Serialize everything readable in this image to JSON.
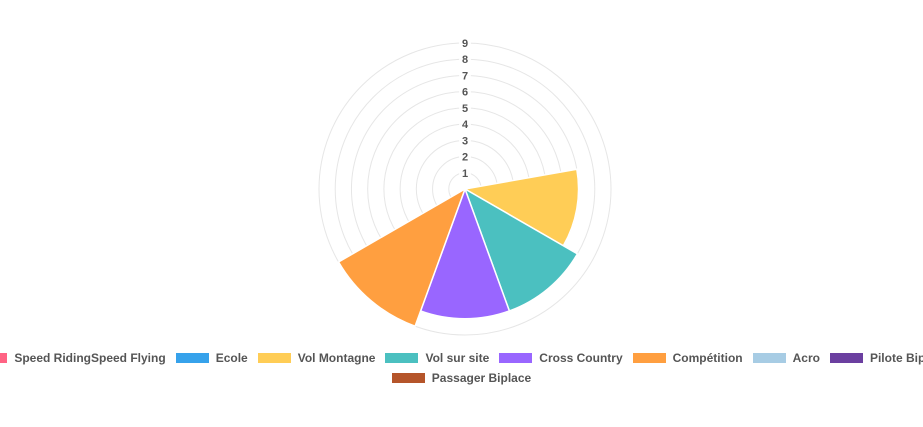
{
  "chart_data": {
    "type": "polarArea",
    "categories": [
      "Speed RidingSpeed Flying",
      "Ecole",
      "Vol Montagne",
      "Vol sur site",
      "Cross Country",
      "Compétition",
      "Acro",
      "Pilote Biplace",
      "Passager Biplace"
    ],
    "values": [
      0,
      0,
      7,
      8,
      8,
      9,
      0,
      0,
      0
    ],
    "colors": [
      "#ff6384",
      "#36a2eb",
      "#ffcd56",
      "#4bc0c0",
      "#9966ff",
      "#ff9f40",
      "#a7cce4",
      "#6b3fa0",
      "#b5552a"
    ],
    "r_ticks": [
      "1",
      "2",
      "3",
      "4",
      "5",
      "6",
      "7",
      "8",
      "9"
    ],
    "r_max": 9,
    "grid": true,
    "legend_position": "bottom"
  }
}
